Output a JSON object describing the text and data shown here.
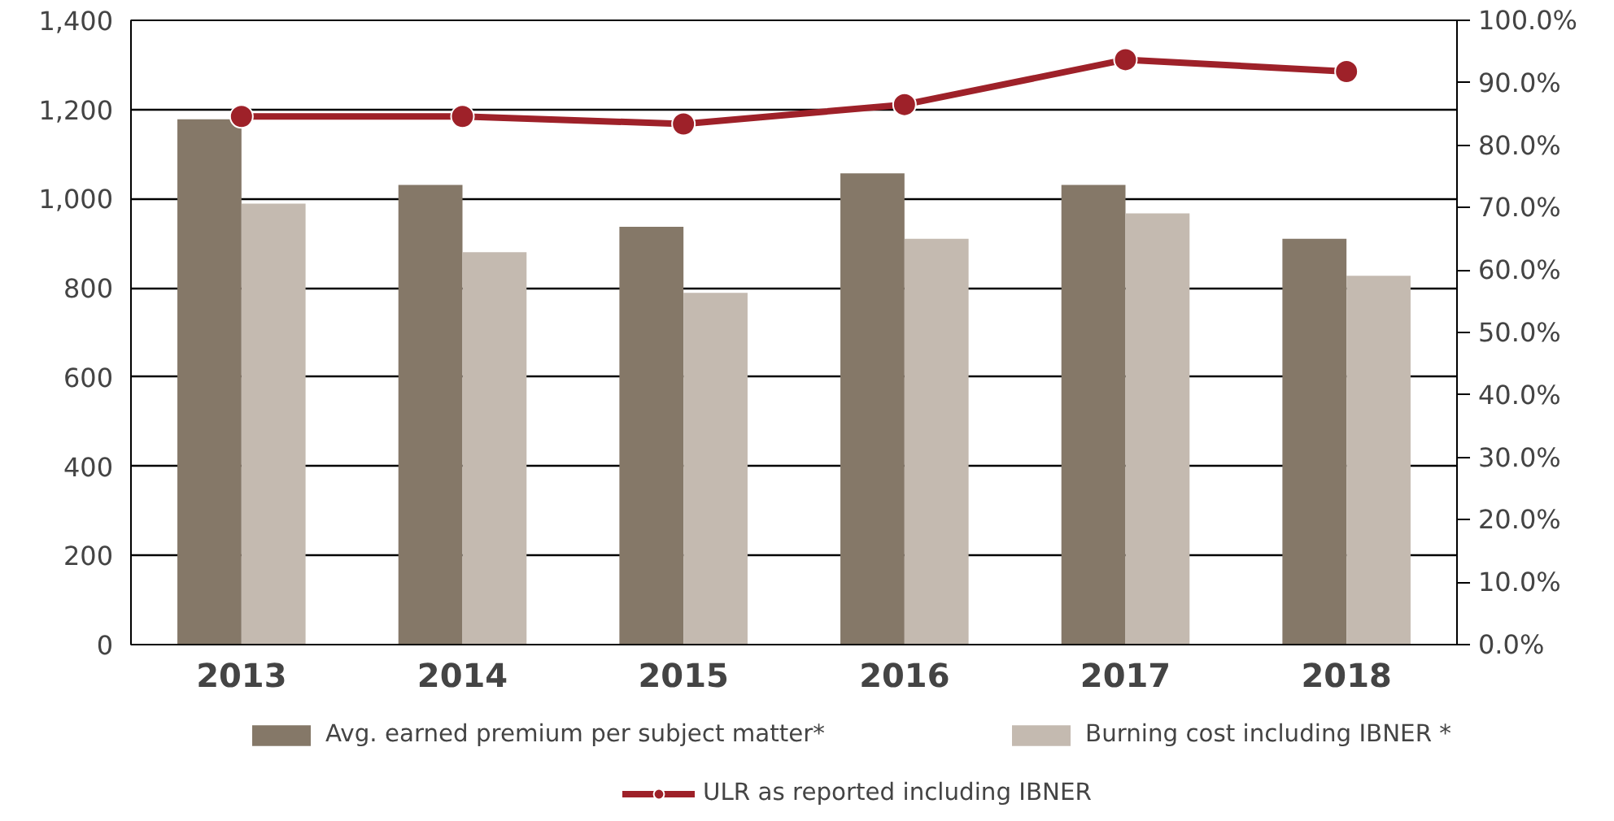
{
  "chart_data": {
    "type": "bar",
    "categories": [
      "2013",
      "2014",
      "2015",
      "2016",
      "2017",
      "2018"
    ],
    "series": [
      {
        "name": "Avg. earned premium per subject matter*",
        "color": "#857868",
        "values": [
          1178,
          1031,
          937,
          1057,
          1031,
          910
        ]
      },
      {
        "name": "Burning cost including IBNER *",
        "color": "#c4bab0",
        "values": [
          989,
          880,
          789,
          910,
          967,
          827
        ]
      },
      {
        "name": "ULR as reported including IBNER",
        "type": "line",
        "axis": "y2",
        "color": "#9e2129",
        "marker": "circle",
        "values": [
          84.6,
          84.6,
          83.4,
          86.5,
          93.7,
          91.8
        ]
      }
    ],
    "ylim": [
      0,
      1400
    ],
    "yticks": [
      0,
      200,
      400,
      600,
      800,
      {
        "value": 1000,
        "label": "1,000"
      },
      {
        "value": 1200,
        "label": "1,200"
      },
      {
        "value": 1400,
        "label": "1,400"
      }
    ],
    "y2lim": [
      0,
      100
    ],
    "y2ticks": [
      {
        "value": 0,
        "label": "0.0%"
      },
      {
        "value": 10,
        "label": "10.0%"
      },
      {
        "value": 20,
        "label": "20.0%"
      },
      {
        "value": 30,
        "label": "30.0%"
      },
      {
        "value": 40,
        "label": "40.0%"
      },
      {
        "value": 50,
        "label": "50.0%"
      },
      {
        "value": 60,
        "label": "60.0%"
      },
      {
        "value": 70,
        "label": "70.0%"
      },
      {
        "value": 80,
        "label": "80.0%"
      },
      {
        "value": 90,
        "label": "90.0%"
      },
      {
        "value": 100,
        "label": "100.0%"
      }
    ],
    "grid": "y",
    "legend": "bottom"
  }
}
